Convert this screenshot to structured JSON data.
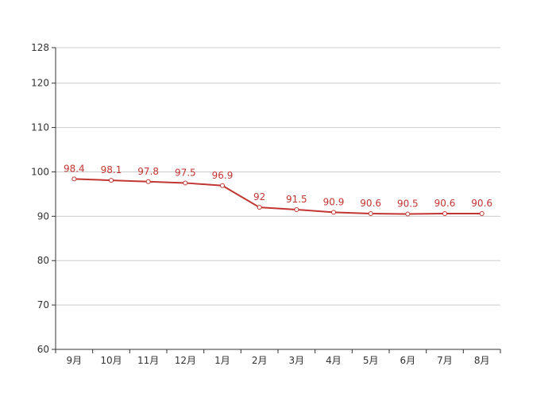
{
  "chart_data": {
    "type": "line",
    "categories": [
      "9月",
      "10月",
      "11月",
      "12月",
      "1月",
      "2月",
      "3月",
      "4月",
      "5月",
      "6月",
      "7月",
      "8月"
    ],
    "series": [
      {
        "values": [
          98.4,
          98.1,
          97.8,
          97.5,
          96.9,
          92,
          91.5,
          90.9,
          90.6,
          90.5,
          90.6,
          90.6
        ]
      }
    ],
    "ylim": [
      60,
      128
    ],
    "yticks": [
      60,
      70,
      80,
      90,
      100,
      110,
      120,
      128
    ],
    "grid": true,
    "line_color": "#c23531",
    "data_labels": true
  }
}
